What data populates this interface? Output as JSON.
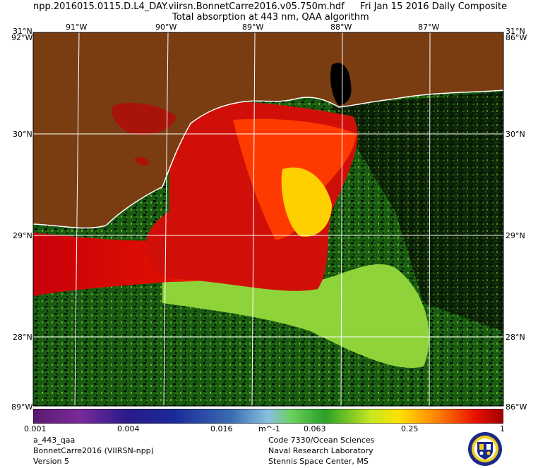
{
  "header": {
    "filename": "npp.2016015.0115.D.L4_DAY.viirsn.BonnetCarre2016.v05.750m.hdf",
    "date": "Fri Jan 15 2016 Daily Composite",
    "product": "Total absorption at 443 nm, QAA algorithm"
  },
  "map": {
    "lon_labels": [
      "91°W",
      "90°W",
      "89°W",
      "88°W",
      "87°W"
    ],
    "lat_labels": [
      "30°N",
      "29°N",
      "28°N"
    ],
    "corner_top_left": "31°N",
    "corner_top_left_lon": "92°W",
    "corner_top_right": "31°N",
    "corner_top_right_lon": "86°W",
    "corner_bottom_left": "89°W",
    "corner_bottom_right": "86°W",
    "colors": {
      "land": "#7a3d12",
      "no_data": "#000000",
      "grid": "#ffffff"
    }
  },
  "colorbar": {
    "ticks": [
      "0.001",
      "0.004",
      "0.016",
      "0.063",
      "0.25",
      "1"
    ],
    "units": "m^-1",
    "scale": "log"
  },
  "footer": {
    "left": [
      "a_443_qaa",
      "BonnetCarre2016 (VIIRSN-npp)",
      "Version 5"
    ],
    "right": [
      "Code 7330/Ocean Sciences",
      "Naval Research Laboratory",
      "Stennis Space Center, MS"
    ]
  },
  "logo": "nrl-seal-icon"
}
